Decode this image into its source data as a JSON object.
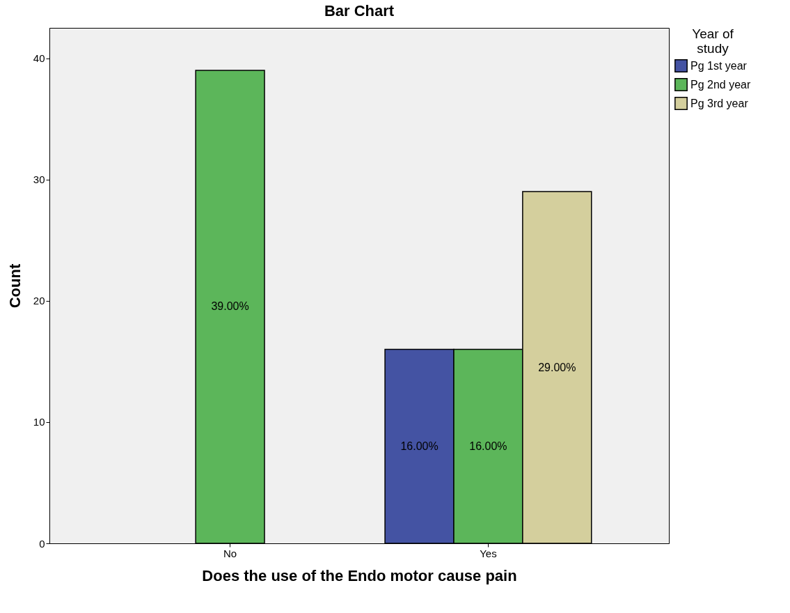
{
  "chart_data": {
    "type": "bar",
    "title": "Bar Chart",
    "xlabel": "Does the use of the Endo motor cause pain",
    "ylabel": "Count",
    "legend_title": "Year of study",
    "categories": [
      "No",
      "Yes"
    ],
    "series": [
      {
        "name": "Pg 1st year",
        "color": "#4453a3",
        "values": [
          null,
          16
        ],
        "value_labels": [
          null,
          "16.00%"
        ]
      },
      {
        "name": "Pg 2nd year",
        "color": "#5cb65a",
        "values": [
          39,
          16
        ],
        "value_labels": [
          "39.00%",
          "16.00%"
        ]
      },
      {
        "name": "Pg 3rd year",
        "color": "#d4cf9d",
        "values": [
          null,
          29
        ],
        "value_labels": [
          null,
          "29.00%"
        ]
      }
    ],
    "ylim": [
      0,
      42.5
    ],
    "yticks": [
      0,
      10,
      20,
      30,
      40
    ],
    "grid": false,
    "legend": "top right"
  }
}
